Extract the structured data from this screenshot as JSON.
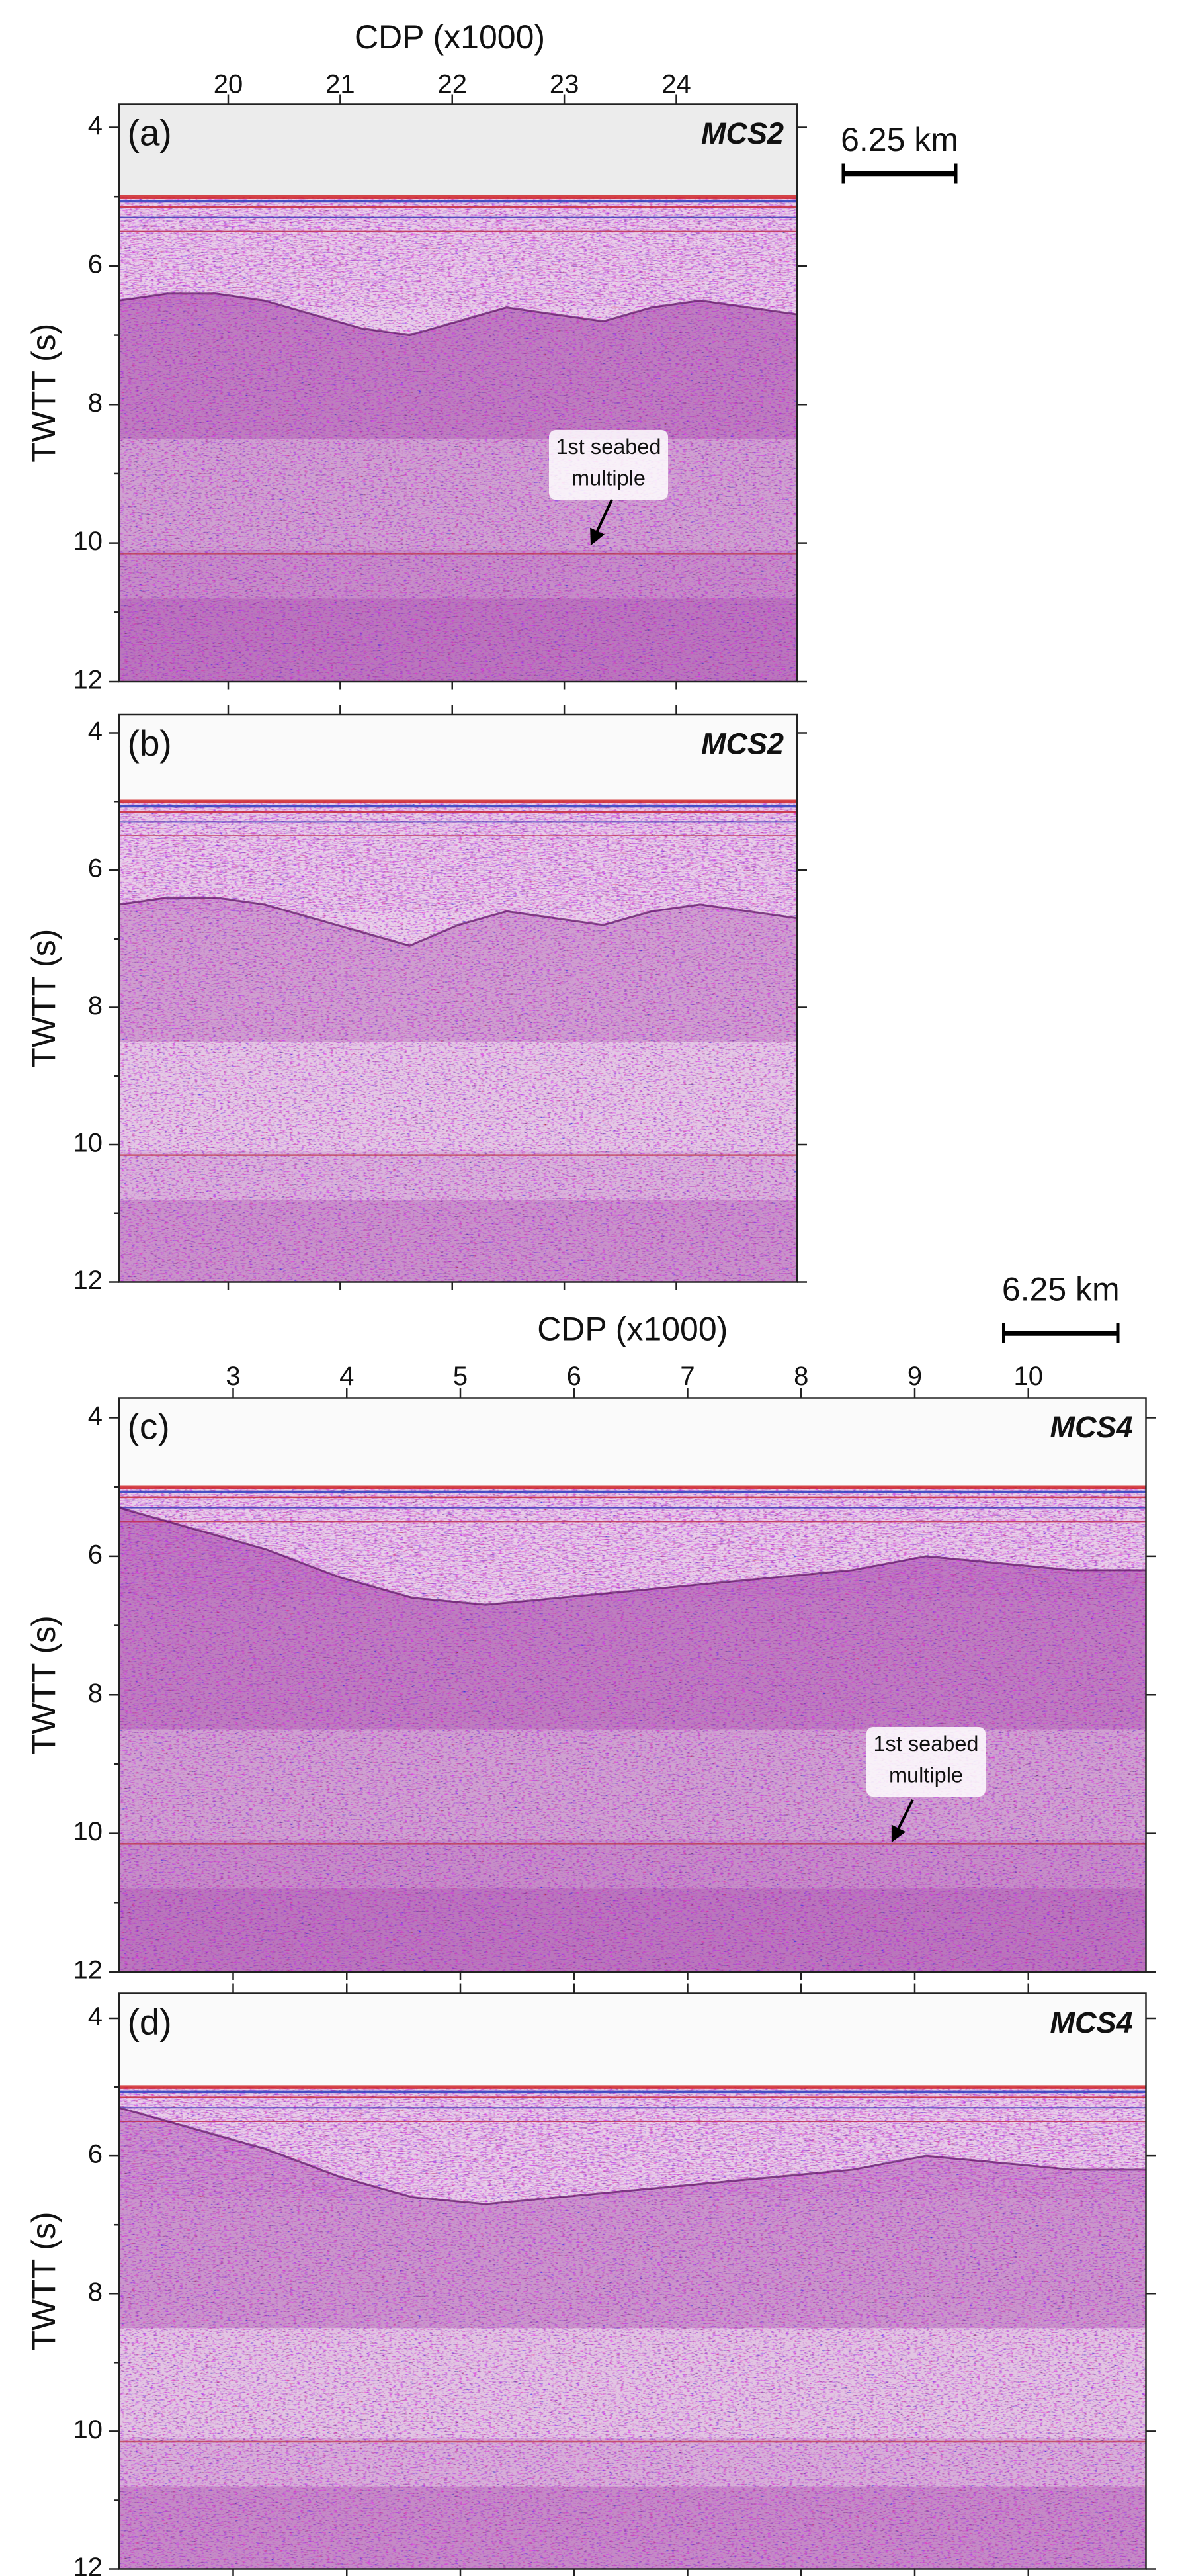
{
  "panels": [
    {
      "label": "(a)",
      "line": "MCS2",
      "x_axis": {
        "title": "CDP (x1000)",
        "ticks": [
          20,
          21,
          22,
          23,
          24
        ]
      },
      "y_axis": {
        "title": "TWTT (s)",
        "ticks": [
          4,
          6,
          8,
          10,
          12
        ]
      },
      "scale_bar": "6.25 km",
      "annotation": [
        "1st seabed",
        "multiple"
      ]
    },
    {
      "label": "(b)",
      "line": "MCS2",
      "y_axis": {
        "title": "TWTT (s)",
        "ticks": [
          4,
          6,
          8,
          10,
          12
        ]
      }
    },
    {
      "label": "(c)",
      "line": "MCS4",
      "x_axis": {
        "title": "CDP (x1000)",
        "ticks": [
          3,
          4,
          5,
          6,
          7,
          8,
          9,
          10
        ]
      },
      "y_axis": {
        "title": "TWTT (s)",
        "ticks": [
          4,
          6,
          8,
          10,
          12
        ]
      },
      "scale_bar": "6.25 km",
      "annotation": [
        "1st seabed",
        "multiple"
      ]
    },
    {
      "label": "(d)",
      "line": "MCS4",
      "y_axis": {
        "title": "TWTT (s)",
        "ticks": [
          4,
          6,
          8,
          10,
          12
        ]
      }
    }
  ]
}
